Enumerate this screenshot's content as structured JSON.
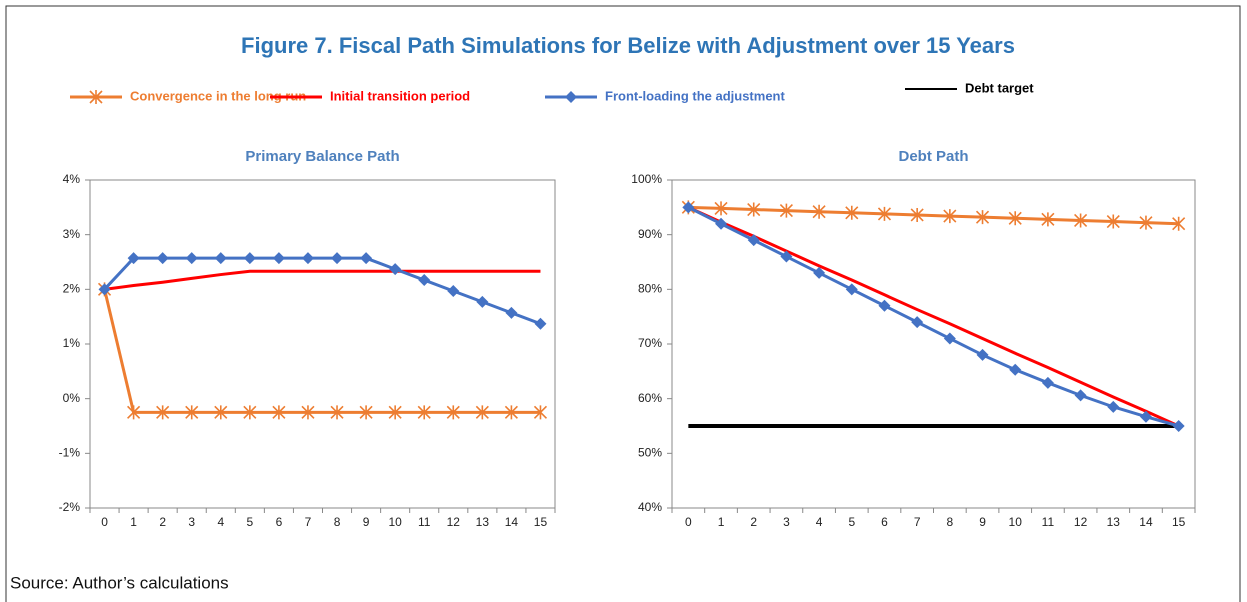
{
  "title": "Figure 7. Fiscal Path Simulations for Belize with Adjustment over 15 Years",
  "source": "Source: Author’s calculations",
  "chart_data": [
    {
      "type": "line",
      "title": "Primary Balance Path",
      "categories": [
        "0",
        "1",
        "2",
        "3",
        "4",
        "5",
        "6",
        "7",
        "8",
        "9",
        "10",
        "11",
        "12",
        "13",
        "14",
        "15"
      ],
      "ylim": [
        -2,
        4
      ],
      "yticks": [
        {
          "value": -2,
          "label": "-2%"
        },
        {
          "value": -1,
          "label": "-1%"
        },
        {
          "value": 0,
          "label": "0%"
        },
        {
          "value": 1,
          "label": "1%"
        },
        {
          "value": 2,
          "label": "2%"
        },
        {
          "value": 3,
          "label": "3%"
        },
        {
          "value": 4,
          "label": "4%"
        }
      ],
      "series": [
        {
          "name": "Convergence in the long run",
          "color": "#ed7d31",
          "marker": "star",
          "values": [
            2,
            -0.25,
            -0.25,
            -0.25,
            -0.25,
            -0.25,
            -0.25,
            -0.25,
            -0.25,
            -0.25,
            -0.25,
            -0.25,
            -0.25,
            -0.25,
            -0.25,
            -0.25
          ]
        },
        {
          "name": "Initial transition period",
          "color": "#ff0000",
          "marker": "none",
          "values": [
            2,
            2.07,
            2.13,
            2.2,
            2.27,
            2.33,
            2.33,
            2.33,
            2.33,
            2.33,
            2.33,
            2.33,
            2.33,
            2.33,
            2.33,
            2.33
          ]
        },
        {
          "name": "Front-loading the adjustment",
          "color": "#4472c4",
          "marker": "diamond",
          "values": [
            2,
            2.57,
            2.57,
            2.57,
            2.57,
            2.57,
            2.57,
            2.57,
            2.57,
            2.57,
            2.37,
            2.17,
            1.97,
            1.77,
            1.57,
            1.37
          ]
        }
      ]
    },
    {
      "type": "line",
      "title": "Debt Path",
      "categories": [
        "0",
        "1",
        "2",
        "3",
        "4",
        "5",
        "6",
        "7",
        "8",
        "9",
        "10",
        "11",
        "12",
        "13",
        "14",
        "15"
      ],
      "ylim": [
        40,
        100
      ],
      "yticks": [
        {
          "value": 40,
          "label": "40%"
        },
        {
          "value": 50,
          "label": "50%"
        },
        {
          "value": 60,
          "label": "60%"
        },
        {
          "value": 70,
          "label": "70%"
        },
        {
          "value": 80,
          "label": "80%"
        },
        {
          "value": 90,
          "label": "90%"
        },
        {
          "value": 100,
          "label": "100%"
        }
      ],
      "series": [
        {
          "color": "#ed7d31",
          "marker": "star",
          "values": [
            95,
            94.8,
            94.6,
            94.4,
            94.2,
            94,
            93.8,
            93.6,
            93.4,
            93.2,
            93,
            92.8,
            92.6,
            92.4,
            92.2,
            92
          ]
        },
        {
          "color": "#ff0000",
          "marker": "none",
          "values": [
            95,
            92.3,
            89.7,
            87,
            84.3,
            81.7,
            79,
            76.3,
            73.7,
            71,
            68.3,
            65.7,
            63,
            60.3,
            57.7,
            55
          ]
        },
        {
          "color": "#4472c4",
          "marker": "diamond",
          "values": [
            95,
            92,
            89,
            86,
            83,
            80,
            77,
            74,
            71,
            68,
            65.3,
            62.9,
            60.6,
            58.5,
            56.7,
            55
          ]
        },
        {
          "name": "Debt target",
          "color": "#000000",
          "marker": "none",
          "values": [
            55,
            55,
            55,
            55,
            55,
            55,
            55,
            55,
            55,
            55,
            55,
            55,
            55,
            55,
            55,
            55
          ]
        }
      ]
    }
  ]
}
